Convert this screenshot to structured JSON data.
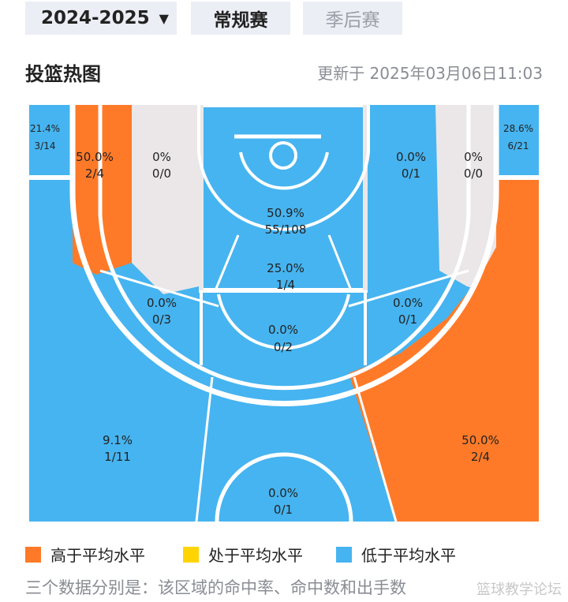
{
  "tabs": {
    "season": "2024-2025",
    "regular": "常规赛",
    "playoffs": "季后赛"
  },
  "header": {
    "title": "投篮热图",
    "updated": "更新于 2025年03月06日11:03"
  },
  "colors": {
    "above": "#ff7a28",
    "average": "#ffd400",
    "below": "#46b4f0",
    "nodata": "#ebe7e8",
    "line": "#ffffff"
  },
  "zones": {
    "left_corner3": {
      "pct": "21.4%",
      "made": "3/14"
    },
    "right_corner3": {
      "pct": "28.6%",
      "made": "6/21"
    },
    "left_wing_mid_outer": {
      "pct": "50.0%",
      "made": "2/4"
    },
    "left_mid_inner": {
      "pct": "0%",
      "made": "0/0"
    },
    "right_mid_inner_a": {
      "pct": "0.0%",
      "made": "0/1"
    },
    "right_mid_inner_b": {
      "pct": "0%",
      "made": "0/0"
    },
    "paint_top": {
      "pct": "50.9%",
      "made": "55/108"
    },
    "paint_lower": {
      "pct": "25.0%",
      "made": "1/4"
    },
    "left_elbow": {
      "pct": "0.0%",
      "made": "0/3"
    },
    "right_elbow": {
      "pct": "0.0%",
      "made": "0/1"
    },
    "top_key": {
      "pct": "0.0%",
      "made": "0/2"
    },
    "left_wing3": {
      "pct": "9.1%",
      "made": "1/11"
    },
    "right_wing3": {
      "pct": "50.0%",
      "made": "2/4"
    },
    "top3": {
      "pct": "0.0%",
      "made": "0/1"
    }
  },
  "legend": {
    "above": "高于平均水平",
    "average": "处于平均水平",
    "below": "低于平均水平"
  },
  "note": "三个数据分别是：该区域的命中率、命中数和出手数",
  "watermark": "篮球教学论坛"
}
